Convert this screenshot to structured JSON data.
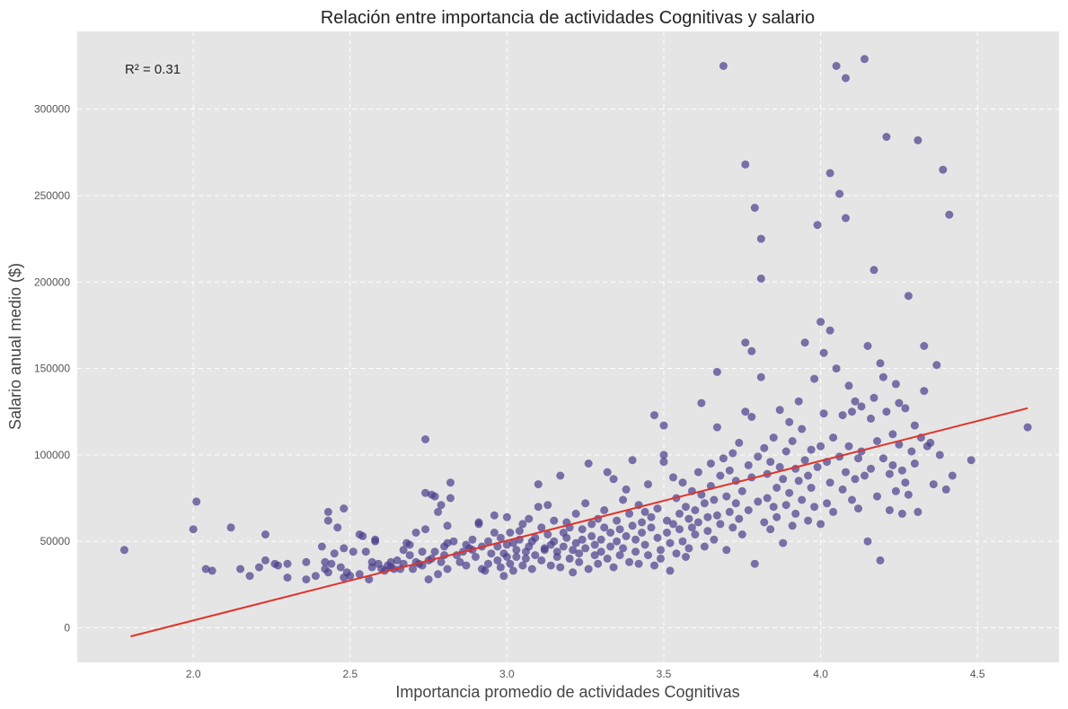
{
  "chart_data": {
    "type": "scatter",
    "title": "Relación entre importancia de actividades Cognitivas y salario",
    "xlabel": "Importancia promedio de actividades Cognitivas",
    "ylabel": "Salario anual medio ($)",
    "xlim": [
      1.63,
      4.76
    ],
    "ylim": [
      -20000,
      345000
    ],
    "xticks": [
      "2.0",
      "2.5",
      "3.0",
      "3.5",
      "4.0",
      "4.5"
    ],
    "yticks": [
      "0",
      "50000",
      "100000",
      "150000",
      "200000",
      "250000",
      "300000"
    ],
    "grid": true,
    "annotation": "R² = 0.31",
    "colors": {
      "points": "#483d8b",
      "fit_line": "#e0332b",
      "background": "#e5e5e5",
      "grid": "#ffffff"
    },
    "fit_line": {
      "x": [
        1.8,
        4.66
      ],
      "y": [
        -5000,
        127000
      ]
    },
    "points": [
      [
        1.78,
        45000
      ],
      [
        2.0,
        57000
      ],
      [
        2.01,
        73000
      ],
      [
        2.04,
        34000
      ],
      [
        2.06,
        33000
      ],
      [
        2.12,
        58000
      ],
      [
        2.15,
        34000
      ],
      [
        2.18,
        30000
      ],
      [
        2.21,
        35000
      ],
      [
        2.23,
        39000
      ],
      [
        2.23,
        54000
      ],
      [
        2.26,
        37000
      ],
      [
        2.27,
        36000
      ],
      [
        2.3,
        37000
      ],
      [
        2.3,
        29000
      ],
      [
        2.36,
        38000
      ],
      [
        2.36,
        28000
      ],
      [
        2.39,
        30000
      ],
      [
        2.41,
        47000
      ],
      [
        2.42,
        34000
      ],
      [
        2.42,
        38000
      ],
      [
        2.43,
        62000
      ],
      [
        2.43,
        67000
      ],
      [
        2.43,
        32000
      ],
      [
        2.44,
        37000
      ],
      [
        2.45,
        43000
      ],
      [
        2.46,
        58000
      ],
      [
        2.47,
        35000
      ],
      [
        2.48,
        46000
      ],
      [
        2.48,
        69000
      ],
      [
        2.48,
        29000
      ],
      [
        2.49,
        32000
      ],
      [
        2.5,
        30000
      ],
      [
        2.51,
        44000
      ],
      [
        2.53,
        31000
      ],
      [
        2.53,
        54000
      ],
      [
        2.54,
        53000
      ],
      [
        2.55,
        44000
      ],
      [
        2.56,
        28000
      ],
      [
        2.57,
        35000
      ],
      [
        2.57,
        38000
      ],
      [
        2.58,
        51000
      ],
      [
        2.58,
        50000
      ],
      [
        2.59,
        37000
      ],
      [
        2.6,
        34000
      ],
      [
        2.61,
        33000
      ],
      [
        2.62,
        36000
      ],
      [
        2.63,
        38000
      ],
      [
        2.63,
        35000
      ],
      [
        2.64,
        34000
      ],
      [
        2.65,
        39000
      ],
      [
        2.66,
        34000
      ],
      [
        2.67,
        37000
      ],
      [
        2.67,
        45000
      ],
      [
        2.68,
        49000
      ],
      [
        2.69,
        42000
      ],
      [
        2.69,
        48000
      ],
      [
        2.7,
        34000
      ],
      [
        2.71,
        38000
      ],
      [
        2.71,
        55000
      ],
      [
        2.72,
        37000
      ],
      [
        2.73,
        36000
      ],
      [
        2.73,
        44000
      ],
      [
        2.74,
        109000
      ],
      [
        2.74,
        78000
      ],
      [
        2.74,
        57000
      ],
      [
        2.75,
        28000
      ],
      [
        2.75,
        39000
      ],
      [
        2.76,
        40000
      ],
      [
        2.76,
        77000
      ],
      [
        2.77,
        76000
      ],
      [
        2.77,
        44000
      ],
      [
        2.78,
        31000
      ],
      [
        2.78,
        67000
      ],
      [
        2.79,
        38000
      ],
      [
        2.79,
        71000
      ],
      [
        2.8,
        47000
      ],
      [
        2.8,
        42000
      ],
      [
        2.81,
        59000
      ],
      [
        2.81,
        49000
      ],
      [
        2.81,
        34000
      ],
      [
        2.82,
        75000
      ],
      [
        2.82,
        84000
      ],
      [
        2.83,
        50000
      ],
      [
        2.84,
        42000
      ],
      [
        2.85,
        38000
      ],
      [
        2.86,
        44000
      ],
      [
        2.87,
        48000
      ],
      [
        2.87,
        36000
      ],
      [
        2.88,
        46000
      ],
      [
        2.89,
        45000
      ],
      [
        2.89,
        51000
      ],
      [
        2.9,
        41000
      ],
      [
        2.91,
        60000
      ],
      [
        2.91,
        61000
      ],
      [
        2.92,
        34000
      ],
      [
        2.92,
        47000
      ],
      [
        2.93,
        33000
      ],
      [
        2.94,
        37000
      ],
      [
        2.94,
        50000
      ],
      [
        2.95,
        43000
      ],
      [
        2.96,
        65000
      ],
      [
        2.96,
        55000
      ],
      [
        2.97,
        39000
      ],
      [
        2.97,
        47000
      ],
      [
        2.98,
        35000
      ],
      [
        2.98,
        52000
      ],
      [
        2.99,
        30000
      ],
      [
        2.99,
        43000
      ],
      [
        3.0,
        41000
      ],
      [
        3.0,
        48000
      ],
      [
        3.0,
        64000
      ],
      [
        3.01,
        55000
      ],
      [
        3.01,
        37000
      ],
      [
        3.02,
        49000
      ],
      [
        3.02,
        33000
      ],
      [
        3.03,
        45000
      ],
      [
        3.03,
        41000
      ],
      [
        3.04,
        51000
      ],
      [
        3.04,
        56000
      ],
      [
        3.05,
        36000
      ],
      [
        3.05,
        60000
      ],
      [
        3.06,
        44000
      ],
      [
        3.06,
        40000
      ],
      [
        3.07,
        47000
      ],
      [
        3.07,
        63000
      ],
      [
        3.08,
        50000
      ],
      [
        3.08,
        34000
      ],
      [
        3.09,
        52000
      ],
      [
        3.09,
        42000
      ],
      [
        3.1,
        83000
      ],
      [
        3.1,
        70000
      ],
      [
        3.11,
        39000
      ],
      [
        3.11,
        58000
      ],
      [
        3.12,
        46000
      ],
      [
        3.12,
        45000
      ],
      [
        3.13,
        71000
      ],
      [
        3.13,
        54000
      ],
      [
        3.14,
        36000
      ],
      [
        3.14,
        48000
      ],
      [
        3.15,
        50000
      ],
      [
        3.15,
        62000
      ],
      [
        3.16,
        41000
      ],
      [
        3.16,
        44000
      ],
      [
        3.17,
        88000
      ],
      [
        3.17,
        35000
      ],
      [
        3.18,
        55000
      ],
      [
        3.18,
        47000
      ],
      [
        3.19,
        52000
      ],
      [
        3.19,
        61000
      ],
      [
        3.2,
        40000
      ],
      [
        3.2,
        58000
      ],
      [
        3.21,
        32000
      ],
      [
        3.21,
        45000
      ],
      [
        3.22,
        49000
      ],
      [
        3.22,
        66000
      ],
      [
        3.23,
        43000
      ],
      [
        3.23,
        38000
      ],
      [
        3.24,
        57000
      ],
      [
        3.24,
        51000
      ],
      [
        3.25,
        72000
      ],
      [
        3.25,
        46000
      ],
      [
        3.26,
        95000
      ],
      [
        3.26,
        34000
      ],
      [
        3.27,
        53000
      ],
      [
        3.27,
        60000
      ],
      [
        3.28,
        42000
      ],
      [
        3.28,
        48000
      ],
      [
        3.29,
        37000
      ],
      [
        3.29,
        63000
      ],
      [
        3.3,
        51000
      ],
      [
        3.3,
        44000
      ],
      [
        3.31,
        58000
      ],
      [
        3.31,
        68000
      ],
      [
        3.32,
        90000
      ],
      [
        3.32,
        40000
      ],
      [
        3.33,
        55000
      ],
      [
        3.33,
        47000
      ],
      [
        3.34,
        86000
      ],
      [
        3.34,
        35000
      ],
      [
        3.35,
        62000
      ],
      [
        3.35,
        50000
      ],
      [
        3.36,
        57000
      ],
      [
        3.36,
        42000
      ],
      [
        3.37,
        74000
      ],
      [
        3.37,
        46000
      ],
      [
        3.38,
        80000
      ],
      [
        3.38,
        53000
      ],
      [
        3.39,
        38000
      ],
      [
        3.39,
        66000
      ],
      [
        3.4,
        97000
      ],
      [
        3.4,
        59000
      ],
      [
        3.41,
        44000
      ],
      [
        3.41,
        51000
      ],
      [
        3.42,
        71000
      ],
      [
        3.42,
        37000
      ],
      [
        3.43,
        61000
      ],
      [
        3.43,
        55000
      ],
      [
        3.44,
        48000
      ],
      [
        3.44,
        67000
      ],
      [
        3.45,
        83000
      ],
      [
        3.45,
        42000
      ],
      [
        3.46,
        58000
      ],
      [
        3.46,
        64000
      ],
      [
        3.47,
        123000
      ],
      [
        3.47,
        36000
      ],
      [
        3.48,
        52000
      ],
      [
        3.48,
        69000
      ],
      [
        3.49,
        45000
      ],
      [
        3.49,
        40000
      ],
      [
        3.5,
        100000
      ],
      [
        3.5,
        117000
      ],
      [
        3.5,
        96000
      ],
      [
        3.51,
        62000
      ],
      [
        3.51,
        55000
      ],
      [
        3.52,
        33000
      ],
      [
        3.52,
        49000
      ],
      [
        3.53,
        87000
      ],
      [
        3.53,
        60000
      ],
      [
        3.54,
        75000
      ],
      [
        3.54,
        43000
      ],
      [
        3.55,
        66000
      ],
      [
        3.55,
        57000
      ],
      [
        3.56,
        84000
      ],
      [
        3.56,
        50000
      ],
      [
        3.57,
        41000
      ],
      [
        3.57,
        70000
      ],
      [
        3.58,
        63000
      ],
      [
        3.58,
        46000
      ],
      [
        3.59,
        79000
      ],
      [
        3.59,
        58000
      ],
      [
        3.6,
        68000
      ],
      [
        3.6,
        54000
      ],
      [
        3.61,
        90000
      ],
      [
        3.61,
        61000
      ],
      [
        3.62,
        130000
      ],
      [
        3.62,
        77000
      ],
      [
        3.63,
        47000
      ],
      [
        3.63,
        72000
      ],
      [
        3.64,
        64000
      ],
      [
        3.64,
        56000
      ],
      [
        3.65,
        95000
      ],
      [
        3.65,
        82000
      ],
      [
        3.66,
        74000
      ],
      [
        3.66,
        51000
      ],
      [
        3.67,
        116000
      ],
      [
        3.67,
        148000
      ],
      [
        3.67,
        65000
      ],
      [
        3.68,
        88000
      ],
      [
        3.68,
        60000
      ],
      [
        3.69,
        325000
      ],
      [
        3.69,
        98000
      ],
      [
        3.7,
        76000
      ],
      [
        3.7,
        45000
      ],
      [
        3.71,
        91000
      ],
      [
        3.71,
        67000
      ],
      [
        3.72,
        101000
      ],
      [
        3.72,
        58000
      ],
      [
        3.73,
        85000
      ],
      [
        3.73,
        72000
      ],
      [
        3.74,
        107000
      ],
      [
        3.74,
        63000
      ],
      [
        3.75,
        79000
      ],
      [
        3.75,
        54000
      ],
      [
        3.76,
        165000
      ],
      [
        3.76,
        125000
      ],
      [
        3.76,
        268000
      ],
      [
        3.77,
        94000
      ],
      [
        3.77,
        68000
      ],
      [
        3.78,
        160000
      ],
      [
        3.78,
        122000
      ],
      [
        3.78,
        87000
      ],
      [
        3.79,
        243000
      ],
      [
        3.79,
        37000
      ],
      [
        3.8,
        99000
      ],
      [
        3.8,
        73000
      ],
      [
        3.81,
        225000
      ],
      [
        3.81,
        202000
      ],
      [
        3.81,
        145000
      ],
      [
        3.82,
        104000
      ],
      [
        3.82,
        61000
      ],
      [
        3.83,
        89000
      ],
      [
        3.83,
        75000
      ],
      [
        3.84,
        96000
      ],
      [
        3.84,
        57000
      ],
      [
        3.85,
        70000
      ],
      [
        3.85,
        110000
      ],
      [
        3.86,
        81000
      ],
      [
        3.86,
        64000
      ],
      [
        3.87,
        126000
      ],
      [
        3.87,
        93000
      ],
      [
        3.88,
        86000
      ],
      [
        3.88,
        49000
      ],
      [
        3.89,
        102000
      ],
      [
        3.89,
        71000
      ],
      [
        3.9,
        119000
      ],
      [
        3.9,
        78000
      ],
      [
        3.91,
        108000
      ],
      [
        3.91,
        59000
      ],
      [
        3.92,
        92000
      ],
      [
        3.92,
        66000
      ],
      [
        3.93,
        131000
      ],
      [
        3.93,
        85000
      ],
      [
        3.94,
        115000
      ],
      [
        3.94,
        74000
      ],
      [
        3.95,
        165000
      ],
      [
        3.95,
        97000
      ],
      [
        3.96,
        88000
      ],
      [
        3.96,
        62000
      ],
      [
        3.97,
        103000
      ],
      [
        3.97,
        81000
      ],
      [
        3.98,
        144000
      ],
      [
        3.98,
        70000
      ],
      [
        3.99,
        233000
      ],
      [
        3.99,
        93000
      ],
      [
        4.0,
        177000
      ],
      [
        4.0,
        105000
      ],
      [
        4.0,
        60000
      ],
      [
        4.01,
        159000
      ],
      [
        4.01,
        124000
      ],
      [
        4.02,
        96000
      ],
      [
        4.02,
        72000
      ],
      [
        4.03,
        263000
      ],
      [
        4.03,
        172000
      ],
      [
        4.03,
        84000
      ],
      [
        4.04,
        110000
      ],
      [
        4.04,
        67000
      ],
      [
        4.05,
        150000
      ],
      [
        4.05,
        325000
      ],
      [
        4.06,
        251000
      ],
      [
        4.06,
        99000
      ],
      [
        4.07,
        123000
      ],
      [
        4.07,
        80000
      ],
      [
        4.08,
        237000
      ],
      [
        4.08,
        318000
      ],
      [
        4.08,
        90000
      ],
      [
        4.09,
        140000
      ],
      [
        4.09,
        105000
      ],
      [
        4.1,
        125000
      ],
      [
        4.1,
        74000
      ],
      [
        4.11,
        131000
      ],
      [
        4.11,
        86000
      ],
      [
        4.12,
        98000
      ],
      [
        4.12,
        69000
      ],
      [
        4.13,
        128000
      ],
      [
        4.13,
        102000
      ],
      [
        4.14,
        329000
      ],
      [
        4.14,
        88000
      ],
      [
        4.15,
        163000
      ],
      [
        4.15,
        50000
      ],
      [
        4.16,
        121000
      ],
      [
        4.16,
        92000
      ],
      [
        4.17,
        207000
      ],
      [
        4.17,
        133000
      ],
      [
        4.18,
        108000
      ],
      [
        4.18,
        76000
      ],
      [
        4.19,
        153000
      ],
      [
        4.19,
        39000
      ],
      [
        4.2,
        145000
      ],
      [
        4.2,
        98000
      ],
      [
        4.21,
        284000
      ],
      [
        4.21,
        125000
      ],
      [
        4.22,
        89000
      ],
      [
        4.22,
        68000
      ],
      [
        4.23,
        112000
      ],
      [
        4.23,
        94000
      ],
      [
        4.24,
        141000
      ],
      [
        4.24,
        79000
      ],
      [
        4.25,
        130000
      ],
      [
        4.25,
        106000
      ],
      [
        4.26,
        91000
      ],
      [
        4.26,
        66000
      ],
      [
        4.27,
        127000
      ],
      [
        4.27,
        84000
      ],
      [
        4.28,
        192000
      ],
      [
        4.28,
        77000
      ],
      [
        4.29,
        102000
      ],
      [
        4.3,
        117000
      ],
      [
        4.3,
        95000
      ],
      [
        4.31,
        282000
      ],
      [
        4.31,
        67000
      ],
      [
        4.32,
        110000
      ],
      [
        4.33,
        163000
      ],
      [
        4.33,
        137000
      ],
      [
        4.34,
        105000
      ],
      [
        4.35,
        107000
      ],
      [
        4.36,
        83000
      ],
      [
        4.37,
        152000
      ],
      [
        4.38,
        100000
      ],
      [
        4.39,
        265000
      ],
      [
        4.4,
        80000
      ],
      [
        4.41,
        239000
      ],
      [
        4.42,
        88000
      ],
      [
        4.48,
        97000
      ],
      [
        4.66,
        116000
      ]
    ]
  }
}
